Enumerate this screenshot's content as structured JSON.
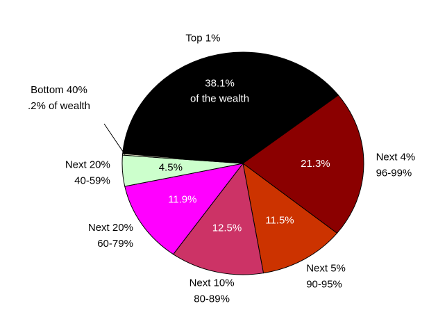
{
  "chart_data": {
    "type": "pie",
    "categories": [
      "Top 1%",
      "Next 4%",
      "Next 5%",
      "Next 10%",
      "Next 20%",
      "Next 20%",
      "Bottom 40%"
    ],
    "ranges": [
      null,
      "96-99%",
      "90-95%",
      "80-89%",
      "60-79%",
      "40-59%",
      null
    ],
    "values": [
      38.1,
      21.3,
      11.5,
      12.5,
      11.9,
      4.5,
      0.2
    ],
    "value_labels": [
      "38.1%",
      "21.3%",
      "11.5%",
      "12.5%",
      "11.9%",
      "4.5%",
      ".2% of wealth"
    ],
    "annotation": "of the wealth",
    "colors": [
      "#000000",
      "#8b0000",
      "#cc3300",
      "#cc3366",
      "#ff00ff",
      "#ccffcc",
      "#ffffe0"
    ]
  }
}
